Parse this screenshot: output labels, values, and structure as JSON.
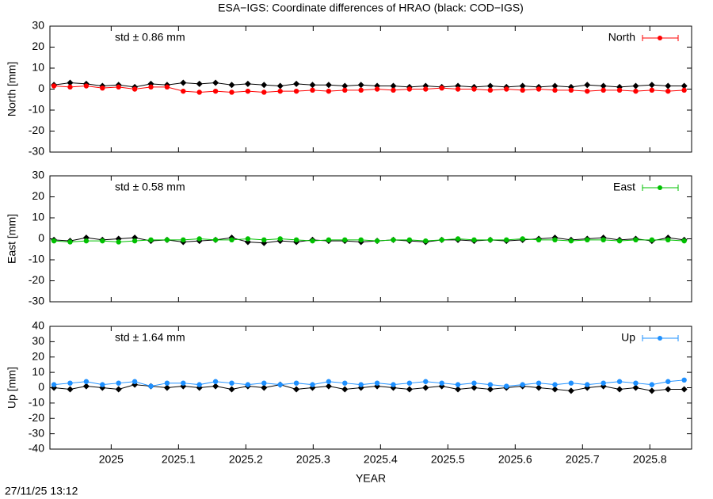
{
  "title": "ESA−IGS: Coordinate differences of HRAO (black: COD−IGS)",
  "timestamp": "27/11/25 13:12",
  "chart_data": [
    {
      "type": "line",
      "ylabel": "North [mm]",
      "annotation": "std ± 0.86 mm",
      "x": [
        2024.915,
        2024.939,
        2024.963,
        2024.987,
        2025.011,
        2025.035,
        2025.059,
        2025.083,
        2025.107,
        2025.131,
        2025.155,
        2025.179,
        2025.203,
        2025.227,
        2025.251,
        2025.275,
        2025.299,
        2025.323,
        2025.347,
        2025.371,
        2025.395,
        2025.419,
        2025.443,
        2025.467,
        2025.491,
        2025.515,
        2025.539,
        2025.563,
        2025.587,
        2025.611,
        2025.635,
        2025.659,
        2025.683,
        2025.707,
        2025.731,
        2025.755,
        2025.779,
        2025.803,
        2025.827,
        2025.851
      ],
      "series": [
        {
          "color": "#000000",
          "values": [
            2,
            3,
            2.5,
            1.5,
            2,
            1,
            2.5,
            2,
            3,
            2.5,
            3,
            2,
            2.5,
            2,
            1.5,
            2.5,
            2,
            2,
            1.5,
            2,
            1.5,
            1.5,
            1,
            1.5,
            1,
            1.5,
            1,
            1.5,
            1,
            1.5,
            1,
            1.5,
            1,
            2,
            1.5,
            1,
            1.5,
            2,
            1.5,
            1.5
          ]
        },
        {
          "name": "North",
          "color": "#ff0000",
          "values": [
            1.5,
            1,
            1.5,
            0.5,
            1,
            0,
            1,
            1,
            -1,
            -1.5,
            -1,
            -1.5,
            -1,
            -1.5,
            -1,
            -1,
            -0.5,
            -1,
            -0.5,
            -0.5,
            0,
            -0.5,
            0,
            0,
            0.5,
            0,
            0,
            -0.5,
            0,
            -0.5,
            0,
            -0.5,
            -0.5,
            -1,
            -0.5,
            -0.5,
            -1,
            -0.5,
            -1,
            -0.5
          ]
        }
      ],
      "xlim": [
        2024.909,
        2025.862
      ],
      "xticks": [
        2025,
        2025.1,
        2025.2,
        2025.3,
        2025.4,
        2025.5,
        2025.6,
        2025.7,
        2025.8
      ],
      "ylim": [
        -30,
        30
      ],
      "yticks": [
        -30,
        -20,
        -10,
        0,
        10,
        20,
        30
      ],
      "legend": "upper right"
    },
    {
      "type": "line",
      "ylabel": "East [mm]",
      "annotation": "std ± 0.58 mm",
      "x": [
        2024.915,
        2024.939,
        2024.963,
        2024.987,
        2025.011,
        2025.035,
        2025.059,
        2025.083,
        2025.107,
        2025.131,
        2025.155,
        2025.179,
        2025.203,
        2025.227,
        2025.251,
        2025.275,
        2025.299,
        2025.323,
        2025.347,
        2025.371,
        2025.395,
        2025.419,
        2025.443,
        2025.467,
        2025.491,
        2025.515,
        2025.539,
        2025.563,
        2025.587,
        2025.611,
        2025.635,
        2025.659,
        2025.683,
        2025.707,
        2025.731,
        2025.755,
        2025.779,
        2025.803,
        2025.827,
        2025.851
      ],
      "series": [
        {
          "color": "#000000",
          "values": [
            -0.5,
            -1,
            0.5,
            -0.5,
            0,
            0.5,
            -1,
            -0.5,
            -1.5,
            -1,
            -0.5,
            0.5,
            -1.5,
            -2,
            -1,
            -1.5,
            -0.5,
            -1,
            -1,
            -1.5,
            -1,
            -0.5,
            -1,
            -1.5,
            -0.5,
            -0.5,
            -1,
            -0.5,
            -1,
            -0.5,
            0,
            0.5,
            -0.5,
            0,
            0.5,
            -0.5,
            0,
            -1,
            0.5,
            -0.5
          ]
        },
        {
          "name": "East",
          "color": "#00c000",
          "values": [
            -1,
            -1.5,
            -1,
            -1,
            -1.5,
            -1,
            -0.5,
            -0.5,
            -0.5,
            0,
            -0.5,
            -0.5,
            0,
            -0.5,
            0,
            -0.5,
            -1,
            -0.5,
            -0.5,
            -0.5,
            -1,
            -0.5,
            -0.5,
            -1,
            -0.5,
            0,
            -0.5,
            -0.5,
            -0.5,
            0,
            -0.5,
            -0.5,
            -1,
            -0.5,
            -0.5,
            -1,
            -0.5,
            -0.5,
            -0.5,
            -1
          ]
        }
      ],
      "xlim": [
        2024.909,
        2025.862
      ],
      "xticks": [
        2025,
        2025.1,
        2025.2,
        2025.3,
        2025.4,
        2025.5,
        2025.6,
        2025.7,
        2025.8
      ],
      "ylim": [
        -30,
        30
      ],
      "yticks": [
        -30,
        -20,
        -10,
        0,
        10,
        20,
        30
      ],
      "legend": "upper right"
    },
    {
      "type": "line",
      "ylabel": "Up [mm]",
      "annotation": "std ± 1.64 mm",
      "xlabel": "YEAR",
      "x": [
        2024.915,
        2024.939,
        2024.963,
        2024.987,
        2025.011,
        2025.035,
        2025.059,
        2025.083,
        2025.107,
        2025.131,
        2025.155,
        2025.179,
        2025.203,
        2025.227,
        2025.251,
        2025.275,
        2025.299,
        2025.323,
        2025.347,
        2025.371,
        2025.395,
        2025.419,
        2025.443,
        2025.467,
        2025.491,
        2025.515,
        2025.539,
        2025.563,
        2025.587,
        2025.611,
        2025.635,
        2025.659,
        2025.683,
        2025.707,
        2025.731,
        2025.755,
        2025.779,
        2025.803,
        2025.827,
        2025.851
      ],
      "series": [
        {
          "color": "#000000",
          "values": [
            0,
            -1,
            1,
            0,
            -1,
            2,
            1,
            0,
            1,
            0,
            1,
            -1,
            1,
            0,
            2,
            -1,
            0,
            1,
            -1,
            0,
            1,
            0,
            -1,
            0,
            1,
            -1,
            0,
            -1,
            0,
            1,
            0,
            -1,
            -2,
            0,
            1,
            -1,
            0,
            -2,
            -1,
            -1
          ]
        },
        {
          "name": "Up",
          "color": "#1e90ff",
          "values": [
            2,
            3,
            4,
            2,
            3,
            4,
            1,
            3,
            3,
            2,
            4,
            3,
            2,
            3,
            2,
            3,
            2,
            4,
            3,
            2,
            3,
            2,
            3,
            4,
            3,
            2,
            3,
            2,
            1,
            2,
            3,
            2,
            3,
            2,
            3,
            4,
            3,
            2,
            4,
            5
          ]
        }
      ],
      "xlim": [
        2024.909,
        2025.862
      ],
      "xticks": [
        2025,
        2025.1,
        2025.2,
        2025.3,
        2025.4,
        2025.5,
        2025.6,
        2025.7,
        2025.8
      ],
      "ylim": [
        -40,
        40
      ],
      "yticks": [
        -40,
        -30,
        -20,
        -10,
        0,
        10,
        20,
        30,
        40
      ],
      "legend": "upper right"
    }
  ]
}
